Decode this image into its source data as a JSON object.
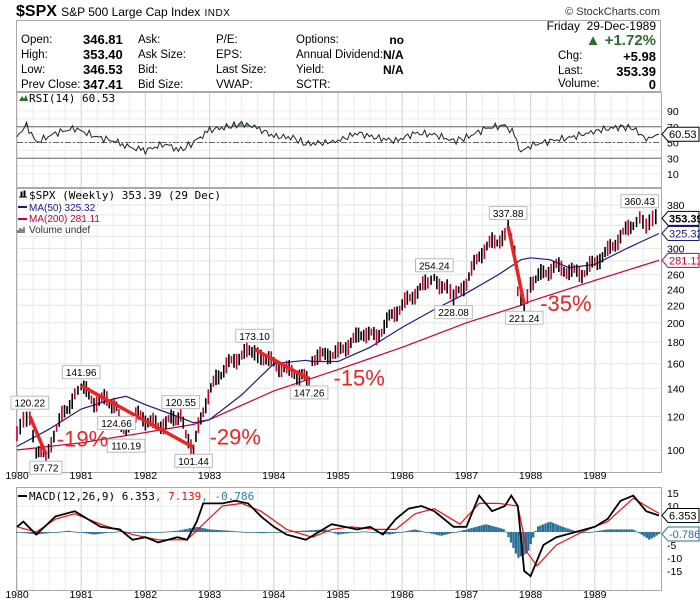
{
  "header": {
    "symbol": "$SPX",
    "name": "S&P 500 Large Cap Index",
    "exchange": "INDX",
    "copyright": "© StockCharts.com"
  },
  "quote": {
    "left_labels": [
      "Open:",
      "High:",
      "Low:",
      "Prev Close:"
    ],
    "left_values": [
      "346.81",
      "353.40",
      "346.53",
      "347.41"
    ],
    "mid_labels": [
      "Ask:",
      "Ask Size:",
      "Bid:",
      "Bid Size:"
    ],
    "col3_labels": [
      "P/E:",
      "EPS:",
      "Last Size:",
      "VWAP:"
    ],
    "col4_labels": [
      "Options:",
      "Annual Dividend:",
      "Yield:",
      "SCTR:"
    ],
    "col4_values": [
      "no",
      "N/A",
      "N/A",
      ""
    ],
    "date": "Friday  29-Dec-1989",
    "pct_change": "+1.72%",
    "chg_label": "Chg:",
    "chg_value": "+5.98",
    "last_label": "Last:",
    "last_value": "353.39",
    "volume_label": "Volume:",
    "volume_value": "0",
    "up_color": "#2e6b2e"
  },
  "chart_data": [
    {
      "type": "line",
      "title": "RSI(14) 60.53",
      "legend": "RSI(14) 60.53",
      "yticks": [
        90,
        70,
        50,
        30,
        10
      ],
      "ylim": [
        0,
        100
      ],
      "current_value": "60.53",
      "overbought": 70,
      "oversold": 30,
      "x": [
        1980.0,
        1980.15,
        1980.3,
        1980.6,
        1980.9,
        1981.2,
        1981.5,
        1981.75,
        1982.0,
        1982.3,
        1982.55,
        1982.75,
        1983.0,
        1983.3,
        1983.5,
        1983.7,
        1984.0,
        1984.3,
        1984.5,
        1984.8,
        1985.0,
        1985.3,
        1985.6,
        1985.9,
        1986.2,
        1986.5,
        1986.8,
        1987.0,
        1987.3,
        1987.6,
        1987.75,
        1987.85,
        1988.0,
        1988.3,
        1988.6,
        1988.9,
        1989.1,
        1989.4,
        1989.6,
        1989.8,
        1990.0
      ],
      "values": [
        58,
        72,
        50,
        62,
        68,
        58,
        52,
        44,
        40,
        48,
        40,
        50,
        66,
        70,
        74,
        70,
        58,
        56,
        48,
        50,
        52,
        62,
        56,
        52,
        62,
        60,
        52,
        56,
        68,
        72,
        60,
        38,
        46,
        52,
        56,
        62,
        66,
        70,
        68,
        54,
        60.53
      ]
    },
    {
      "type": "line",
      "title": "$SPX (Weekly) 353.39 (29 Dec)",
      "legend": [
        "$SPX (Weekly) 353.39 (29 Dec)",
        "MA(50) 325.32",
        "MA(200) 281.11",
        "Volume undef"
      ],
      "scale": "log",
      "ylim": [
        90,
        390
      ],
      "yticks": [
        380,
        360,
        340,
        320,
        300,
        280,
        260,
        240,
        220,
        200,
        180,
        160,
        140,
        120,
        100
      ],
      "xticks": [
        "1980",
        "1981",
        "1982",
        "1983",
        "1984",
        "1985",
        "1986",
        "1987",
        "1988",
        "1989"
      ],
      "series": [
        {
          "name": "$SPX",
          "x": [
            1980.0,
            1980.1,
            1980.2,
            1980.3,
            1980.45,
            1980.7,
            1980.9,
            1981.0,
            1981.2,
            1981.4,
            1981.55,
            1981.7,
            1981.85,
            1982.0,
            1982.2,
            1982.4,
            1982.55,
            1982.63,
            1982.75,
            1982.9,
            1983.1,
            1983.3,
            1983.5,
            1983.7,
            1983.8,
            1984.0,
            1984.2,
            1984.4,
            1984.55,
            1984.6,
            1984.8,
            1985.0,
            1985.2,
            1985.4,
            1985.6,
            1985.8,
            1986.0,
            1986.2,
            1986.4,
            1986.5,
            1986.7,
            1986.8,
            1987.0,
            1987.2,
            1987.4,
            1987.6,
            1987.65,
            1987.75,
            1987.8,
            1987.9,
            1988.0,
            1988.2,
            1988.4,
            1988.6,
            1988.8,
            1989.0,
            1989.2,
            1989.4,
            1989.6,
            1989.7,
            1989.8,
            1989.9,
            1990.0
          ],
          "values": [
            108,
            118,
            120.22,
            100,
            97.72,
            120,
            135,
            141.96,
            130,
            132,
            124.66,
            110.19,
            122,
            118,
            114,
            118,
            120.55,
            108,
            101.44,
            125,
            148,
            160,
            168,
            173.1,
            168,
            160,
            155,
            150,
            147.26,
            165,
            168,
            170,
            180,
            190,
            185,
            205,
            220,
            235,
            250,
            254.24,
            240,
            228.08,
            250,
            290,
            310,
            320,
            337.88,
            300,
            240,
            221.24,
            250,
            262,
            272,
            265,
            262,
            278,
            295,
            320,
            345,
            360.43,
            340,
            350,
            353.39
          ]
        },
        {
          "name": "MA(50)",
          "value_label": "325.32",
          "x": [
            1980.0,
            1980.5,
            1981.0,
            1981.5,
            1981.7,
            1982.0,
            1982.5,
            1982.75,
            1983.0,
            1983.5,
            1984.0,
            1984.5,
            1984.6,
            1985.0,
            1985.5,
            1986.0,
            1986.5,
            1987.0,
            1987.5,
            1987.85,
            1988.0,
            1988.3,
            1988.6,
            1989.0,
            1989.5,
            1990.0
          ],
          "values": [
            102,
            112,
            125,
            132,
            134,
            128,
            120,
            116,
            118,
            135,
            160,
            163,
            162,
            162,
            175,
            195,
            215,
            235,
            260,
            282,
            285,
            282,
            270,
            275,
            300,
            325.32
          ]
        },
        {
          "name": "MA(200)",
          "value_label": "281.11",
          "x": [
            1980.0,
            1981.0,
            1982.0,
            1982.75,
            1983.0,
            1984.0,
            1985.0,
            1986.0,
            1987.0,
            1987.85,
            1988.0,
            1989.0,
            1990.0
          ],
          "values": [
            100,
            104,
            110,
            115,
            118,
            138,
            155,
            175,
            200,
            220,
            225,
            252,
            281.11
          ]
        }
      ],
      "annotations": [
        {
          "text": "120.22",
          "kind": "price-label"
        },
        {
          "text": "97.72",
          "kind": "price-label"
        },
        {
          "text": "141.96",
          "kind": "price-label"
        },
        {
          "text": "124.66",
          "kind": "price-label"
        },
        {
          "text": "110.19",
          "kind": "price-label"
        },
        {
          "text": "120.55",
          "kind": "price-label"
        },
        {
          "text": "101.44",
          "kind": "price-label"
        },
        {
          "text": "173.10",
          "kind": "price-label"
        },
        {
          "text": "147.26",
          "kind": "price-label"
        },
        {
          "text": "254.24",
          "kind": "price-label"
        },
        {
          "text": "228.08",
          "kind": "price-label"
        },
        {
          "text": "337.88",
          "kind": "price-label"
        },
        {
          "text": "221.24",
          "kind": "price-label"
        },
        {
          "text": "360.43",
          "kind": "price-label"
        },
        {
          "text": "-19%",
          "kind": "drawdown"
        },
        {
          "text": "-29%",
          "kind": "drawdown"
        },
        {
          "text": "-15%",
          "kind": "drawdown"
        },
        {
          "text": "-35%",
          "kind": "drawdown"
        }
      ],
      "trendlines": [
        {
          "from": [
            1980.2,
            120.22
          ],
          "to": [
            1980.45,
            97.72
          ]
        },
        {
          "from": [
            1981.0,
            141.96
          ],
          "to": [
            1982.75,
            101.44
          ]
        },
        {
          "from": [
            1983.7,
            173.1
          ],
          "to": [
            1984.55,
            147.26
          ]
        },
        {
          "from": [
            1987.65,
            337.88
          ],
          "to": [
            1987.9,
            221.24
          ]
        }
      ],
      "current_price_label": "353.39",
      "colors": {
        "price": "#000000",
        "down": "#cc0033",
        "ma50": "#1a1a8c",
        "ma200": "#cc0033",
        "annotation": "#ee2222"
      }
    },
    {
      "type": "line",
      "title": "MACD(12,26,9) 6.353, 7.139, -0.786",
      "legend": [
        "MACD(12,26,9) 6.353",
        "7.139",
        "-0.786"
      ],
      "yticks": [
        15,
        10,
        -5,
        -10,
        -15
      ],
      "ylim": [
        -19,
        17
      ],
      "series": [
        {
          "name": "MACD",
          "value_label": "6.353",
          "x": [
            1980.0,
            1980.1,
            1980.3,
            1980.6,
            1980.9,
            1981.1,
            1981.3,
            1981.6,
            1981.8,
            1982.0,
            1982.2,
            1982.5,
            1982.65,
            1982.8,
            1982.9,
            1983.2,
            1983.4,
            1983.6,
            1983.8,
            1984.0,
            1984.2,
            1984.5,
            1984.7,
            1984.9,
            1985.1,
            1985.3,
            1985.5,
            1985.7,
            1985.9,
            1986.1,
            1986.3,
            1986.5,
            1986.8,
            1987.0,
            1987.2,
            1987.4,
            1987.6,
            1987.7,
            1987.8,
            1987.9,
            1988.0,
            1988.2,
            1988.4,
            1988.7,
            1989.0,
            1989.2,
            1989.4,
            1989.6,
            1989.8,
            1990.0
          ],
          "values": [
            2,
            4,
            -1,
            6,
            8,
            5,
            2,
            1,
            -3,
            -2,
            -4,
            -2,
            -3,
            4,
            11,
            11,
            12,
            11,
            6,
            2,
            -1,
            -3,
            0,
            3,
            2,
            1,
            2,
            -1,
            5,
            9,
            10,
            8,
            2,
            2,
            14,
            8,
            10,
            14,
            10,
            -15,
            -17,
            -5,
            -2,
            0,
            2,
            5,
            12,
            14,
            8,
            6.353
          ]
        },
        {
          "name": "Signal",
          "value_label": "7.139",
          "x": [
            1980.0,
            1980.3,
            1980.6,
            1980.9,
            1981.3,
            1981.8,
            1982.2,
            1982.65,
            1982.9,
            1983.2,
            1983.5,
            1983.8,
            1984.2,
            1984.6,
            1984.9,
            1985.2,
            1985.6,
            1985.9,
            1986.2,
            1986.5,
            1986.9,
            1987.2,
            1987.5,
            1987.8,
            1987.95,
            1988.1,
            1988.4,
            1988.8,
            1989.2,
            1989.6,
            1989.8,
            1990.0
          ],
          "values": [
            2,
            0,
            5,
            7,
            3,
            -1,
            -3,
            -3,
            3,
            10,
            11,
            8,
            1,
            -2,
            1,
            2,
            1,
            1,
            7,
            9,
            3,
            11,
            11,
            10,
            -8,
            -13,
            -5,
            0,
            4,
            13,
            10,
            7.139
          ]
        },
        {
          "name": "Histogram",
          "value_label": "-0.786",
          "x": [
            1980.0,
            1980.3,
            1980.8,
            1981.2,
            1981.6,
            1982.0,
            1982.5,
            1982.8,
            1983.0,
            1983.3,
            1983.8,
            1984.3,
            1984.8,
            1985.0,
            1985.4,
            1985.8,
            1986.2,
            1986.6,
            1987.0,
            1987.3,
            1987.6,
            1987.8,
            1987.95,
            1988.1,
            1988.3,
            1988.5,
            1988.8,
            1989.2,
            1989.6,
            1989.85,
            1990.0
          ],
          "values": [
            0,
            -1,
            0.5,
            -1,
            0.3,
            -0.5,
            0.5,
            2,
            1,
            0.5,
            -0.5,
            0.3,
            1,
            -1,
            0.3,
            -1,
            1,
            -1.5,
            1,
            3,
            1,
            -10,
            -8,
            2,
            4,
            2,
            -0.5,
            1,
            1,
            -3,
            -0.786
          ]
        }
      ],
      "colors": {
        "macd": "#000000",
        "signal": "#ee1111",
        "histogram": "#2a6f97"
      }
    }
  ]
}
